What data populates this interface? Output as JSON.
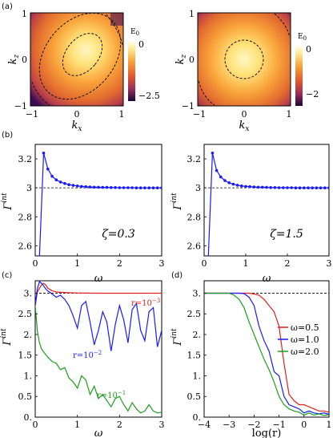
{
  "panel_labels": {
    "a": "(a)",
    "b": "(b)",
    "c": "(c)",
    "d": "(d)"
  },
  "chart_data": [
    {
      "id": "a-left",
      "type": "heatmap",
      "xlabel": "k",
      "xlabel_sub": "x",
      "ylabel": "k",
      "ylabel_sub": "z",
      "x_ticks": [
        "−1",
        "0",
        "1"
      ],
      "y_ticks": [
        "−1",
        "0",
        "1"
      ],
      "xlim": [
        -1,
        1
      ],
      "ylim": [
        -1,
        1
      ],
      "colorbar": {
        "label": "E",
        "label_sub": "0",
        "ticks": [
          "0",
          "−2.5"
        ],
        "range": [
          -2.8,
          0
        ]
      },
      "colors": {
        "bright": "#fff6c2",
        "mid": "#f39a30",
        "dark": "#3a0a57"
      },
      "contours": "dashed",
      "peak": [
        0.0,
        0.0
      ]
    },
    {
      "id": "a-right",
      "type": "heatmap",
      "xlabel": "k",
      "xlabel_sub": "x",
      "ylabel": "k",
      "ylabel_sub": "z",
      "x_ticks": [
        "−1",
        "0",
        "1"
      ],
      "y_ticks": [
        "−1",
        "0",
        "1"
      ],
      "xlim": [
        -1,
        1
      ],
      "ylim": [
        -1,
        1
      ],
      "colorbar": {
        "label": "E",
        "label_sub": "0",
        "ticks": [
          "0",
          "−2"
        ],
        "range": [
          -2.3,
          0
        ]
      },
      "colors": {
        "bright": "#fff6c2",
        "mid": "#f39a30",
        "dark": "#3a0a57"
      },
      "contours": "dashed",
      "peak": [
        0.0,
        0.0
      ]
    },
    {
      "id": "b-left",
      "type": "line",
      "xlabel": "ω",
      "ylabel": "Γ",
      "ylabel_sup": "int",
      "annotation": "ζ=0.3",
      "x_ticks": [
        "0",
        "1",
        "2",
        "3"
      ],
      "y_ticks": [
        "2.6",
        "2.8",
        "3",
        "3.2"
      ],
      "xlim": [
        0,
        3
      ],
      "ylim": [
        2.53,
        3.3
      ],
      "reference_line": 3.0,
      "series": [
        {
          "color": "#1a1aff",
          "x": [
            0.0,
            0.2,
            0.3,
            0.4,
            0.5,
            0.6,
            0.7,
            0.8,
            0.9,
            1.0,
            1.1,
            1.2,
            1.3,
            1.4,
            1.5,
            1.6,
            1.7,
            1.8,
            1.9,
            2.0,
            2.1,
            2.2,
            2.3,
            2.4,
            2.5,
            2.6,
            2.7,
            2.8,
            2.9,
            3.0
          ],
          "y": [
            1.8,
            3.24,
            3.13,
            3.08,
            3.055,
            3.04,
            3.03,
            3.022,
            3.017,
            3.013,
            3.01,
            3.008,
            3.006,
            3.005,
            3.004,
            3.003,
            3.003,
            3.002,
            3.002,
            3.001,
            3.001,
            3.001,
            3.001,
            3.0,
            3.0,
            3.0,
            3.0,
            3.0,
            3.0,
            3.0
          ]
        }
      ]
    },
    {
      "id": "b-right",
      "type": "line",
      "xlabel": "ω",
      "ylabel": "Γ",
      "ylabel_sup": "int",
      "annotation": "ζ=1.5",
      "x_ticks": [
        "0",
        "1",
        "2",
        "3"
      ],
      "y_ticks": [
        "2.6",
        "2.8",
        "3",
        "3.2"
      ],
      "xlim": [
        0,
        3
      ],
      "ylim": [
        2.53,
        3.3
      ],
      "reference_line": 3.0,
      "series": [
        {
          "color": "#1a1aff",
          "x": [
            0.0,
            0.2,
            0.3,
            0.4,
            0.5,
            0.6,
            0.7,
            0.8,
            0.9,
            1.0,
            1.1,
            1.2,
            1.3,
            1.4,
            1.5,
            1.6,
            1.7,
            1.8,
            1.9,
            2.0,
            2.1,
            2.2,
            2.3,
            2.4,
            2.5,
            2.6,
            2.7,
            2.8,
            2.9,
            3.0
          ],
          "y": [
            1.8,
            3.24,
            3.12,
            3.075,
            3.05,
            3.035,
            3.025,
            3.018,
            3.013,
            3.01,
            3.008,
            3.006,
            3.005,
            3.004,
            3.003,
            3.002,
            3.002,
            3.001,
            3.001,
            3.001,
            3.001,
            3.0,
            3.0,
            3.0,
            3.0,
            3.0,
            3.0,
            3.0,
            3.0,
            3.0
          ]
        }
      ]
    },
    {
      "id": "c",
      "type": "line",
      "xlabel": "ω",
      "ylabel": "Γ",
      "ylabel_sup": "int",
      "x_ticks": [
        "0",
        "1",
        "2",
        "3"
      ],
      "y_ticks": [
        "0.",
        "0.5",
        "1.",
        "1.5",
        "2.",
        "2.5",
        "3."
      ],
      "xlim": [
        0,
        3
      ],
      "ylim": [
        0,
        3.3
      ],
      "reference_line": 3.0,
      "series": [
        {
          "label": "r=10",
          "label_sup": "−3",
          "color": "#e02020",
          "x": [
            0.0,
            0.05,
            0.1,
            0.15,
            0.2,
            0.25,
            0.3,
            0.4,
            0.5,
            0.6,
            0.8,
            1.0,
            1.5,
            2.0,
            2.5,
            3.0
          ],
          "y": [
            2.7,
            3.02,
            3.12,
            3.2,
            3.24,
            3.2,
            3.12,
            3.06,
            3.03,
            3.02,
            3.01,
            3.005,
            3.0,
            3.0,
            3.0,
            3.0
          ]
        },
        {
          "label": "r=10",
          "label_sup": "−2",
          "color": "#1a1aff",
          "x": [
            0.0,
            0.05,
            0.1,
            0.15,
            0.2,
            0.25,
            0.3,
            0.35,
            0.4,
            0.5,
            0.6,
            0.7,
            0.8,
            0.9,
            1.0,
            1.1,
            1.2,
            1.3,
            1.4,
            1.5,
            1.6,
            1.7,
            1.8,
            1.9,
            2.0,
            2.1,
            2.2,
            2.3,
            2.4,
            2.5,
            2.6,
            2.7,
            2.8,
            2.9,
            3.0
          ],
          "y": [
            2.7,
            3.1,
            3.28,
            3.24,
            3.18,
            3.1,
            3.05,
            3.02,
            2.98,
            2.9,
            2.95,
            2.85,
            2.7,
            2.45,
            2.15,
            2.7,
            2.8,
            2.3,
            1.75,
            2.1,
            2.55,
            2.3,
            1.6,
            2.25,
            2.7,
            2.35,
            1.8,
            2.6,
            2.75,
            2.1,
            1.85,
            2.55,
            2.65,
            1.7,
            2.1
          ]
        },
        {
          "label": "r=10",
          "label_sup": "−1",
          "color": "#1e9e1e",
          "x": [
            0.0,
            0.05,
            0.1,
            0.15,
            0.2,
            0.3,
            0.4,
            0.5,
            0.6,
            0.7,
            0.8,
            0.9,
            1.0,
            1.1,
            1.2,
            1.3,
            1.4,
            1.5,
            1.6,
            1.7,
            1.8,
            1.9,
            2.0,
            2.1,
            2.2,
            2.3,
            2.4,
            2.5,
            2.6,
            2.7,
            2.8,
            2.9,
            3.0
          ],
          "y": [
            2.7,
            2.1,
            1.8,
            1.65,
            1.58,
            1.45,
            1.35,
            1.3,
            1.15,
            1.2,
            0.95,
            0.85,
            0.7,
            1.0,
            0.9,
            0.55,
            0.75,
            0.45,
            0.55,
            0.4,
            0.25,
            0.45,
            0.5,
            0.3,
            0.15,
            0.35,
            0.2,
            0.1,
            0.15,
            0.3,
            0.15,
            0.1,
            0.12
          ]
        }
      ]
    },
    {
      "id": "d",
      "type": "line",
      "xlabel": "log(r)",
      "ylabel": "Γ",
      "ylabel_sup": "int",
      "x_ticks": [
        "−4",
        "−3",
        "−2",
        "−1",
        "0",
        "1"
      ],
      "y_ticks": [
        "0.",
        "0.5",
        "1.",
        "1.5",
        "2.",
        "2.5",
        "3."
      ],
      "xlim": [
        -4,
        1
      ],
      "ylim": [
        0,
        3.3
      ],
      "reference_line": 3.0,
      "legend_position": "top-right",
      "series": [
        {
          "name": "ω=0.5",
          "color": "#e02020",
          "x": [
            -4.0,
            -3.0,
            -2.5,
            -2.2,
            -2.0,
            -1.8,
            -1.6,
            -1.4,
            -1.2,
            -1.0,
            -0.8,
            -0.6,
            -0.4,
            -0.2,
            0.0,
            0.2,
            0.4,
            0.6,
            0.8,
            1.0
          ],
          "y": [
            3.0,
            3.0,
            3.0,
            3.0,
            2.98,
            2.95,
            2.85,
            2.7,
            2.55,
            2.2,
            1.3,
            0.55,
            0.4,
            0.3,
            0.3,
            0.25,
            0.2,
            0.15,
            0.15,
            0.12
          ]
        },
        {
          "name": "ω=1.0",
          "color": "#1a1aff",
          "x": [
            -4.0,
            -3.0,
            -2.6,
            -2.4,
            -2.2,
            -2.0,
            -1.8,
            -1.6,
            -1.4,
            -1.2,
            -1.0,
            -0.8,
            -0.6,
            -0.4,
            -0.2,
            0.0,
            0.2,
            0.4,
            0.6,
            0.8,
            1.0
          ],
          "y": [
            3.0,
            3.0,
            3.0,
            2.99,
            2.9,
            2.7,
            2.2,
            1.85,
            1.6,
            1.1,
            1.0,
            0.5,
            0.3,
            0.25,
            0.2,
            0.1,
            0.15,
            0.1,
            0.08,
            0.1,
            0.07
          ]
        },
        {
          "name": "ω=2.0",
          "color": "#1e9e1e",
          "x": [
            -4.0,
            -3.0,
            -2.8,
            -2.6,
            -2.4,
            -2.2,
            -2.0,
            -1.8,
            -1.6,
            -1.4,
            -1.2,
            -1.0,
            -0.8,
            -0.6,
            -0.4,
            -0.2,
            0.0,
            0.2,
            0.4,
            0.6,
            0.8,
            1.0
          ],
          "y": [
            3.0,
            3.0,
            2.95,
            2.85,
            2.65,
            2.3,
            2.0,
            1.7,
            1.4,
            1.15,
            0.85,
            0.5,
            0.3,
            0.2,
            0.15,
            0.12,
            0.05,
            0.1,
            0.05,
            0.08,
            0.04,
            0.06
          ]
        }
      ]
    }
  ]
}
